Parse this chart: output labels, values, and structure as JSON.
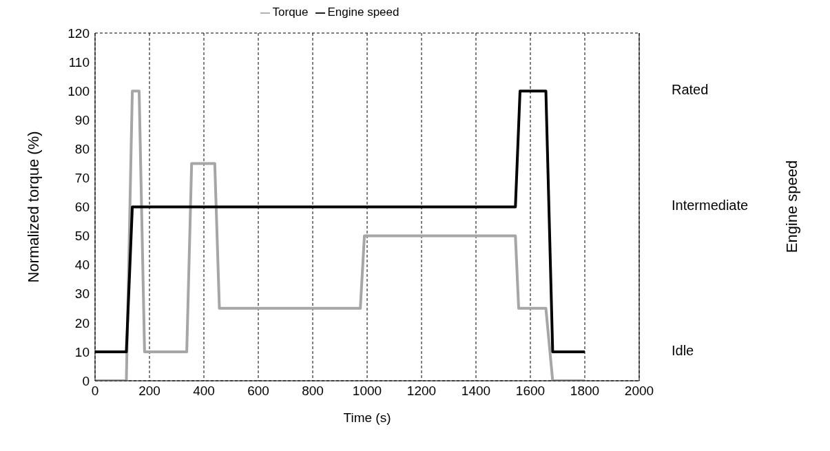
{
  "chart_data": {
    "type": "line",
    "xlabel": "Time (s)",
    "ylabel": "Normalized torque (%)",
    "series": [
      {
        "name": "Torque",
        "color": "#a6a6a6",
        "x": [
          0,
          115,
          137,
          162,
          182,
          337,
          355,
          440,
          457,
          975,
          990,
          1545,
          1557,
          1657,
          1682,
          1800
        ],
        "values": [
          0,
          0,
          100,
          100,
          10,
          10,
          75,
          75,
          25,
          25,
          50,
          50,
          25,
          25,
          0,
          0
        ]
      },
      {
        "name": "Engine speed",
        "color": "#000000",
        "x": [
          0,
          115,
          137,
          1545,
          1562,
          1657,
          1682,
          1800
        ],
        "values": [
          10,
          10,
          60,
          60,
          100,
          100,
          10,
          10
        ]
      }
    ],
    "xlim": [
      0,
      2000
    ],
    "xticks": [
      0,
      200,
      400,
      600,
      800,
      1000,
      1200,
      1400,
      1600,
      1800,
      2000
    ],
    "ylim": [
      0,
      120
    ],
    "yticks": [
      0,
      10,
      20,
      30,
      40,
      50,
      60,
      70,
      80,
      90,
      100,
      110,
      120
    ],
    "annotations": [
      "Rated",
      "Intermediate",
      "Idle",
      "Engine speed"
    ],
    "grid": true,
    "legend": "top",
    "marker": "none",
    "line_style": "solid"
  }
}
